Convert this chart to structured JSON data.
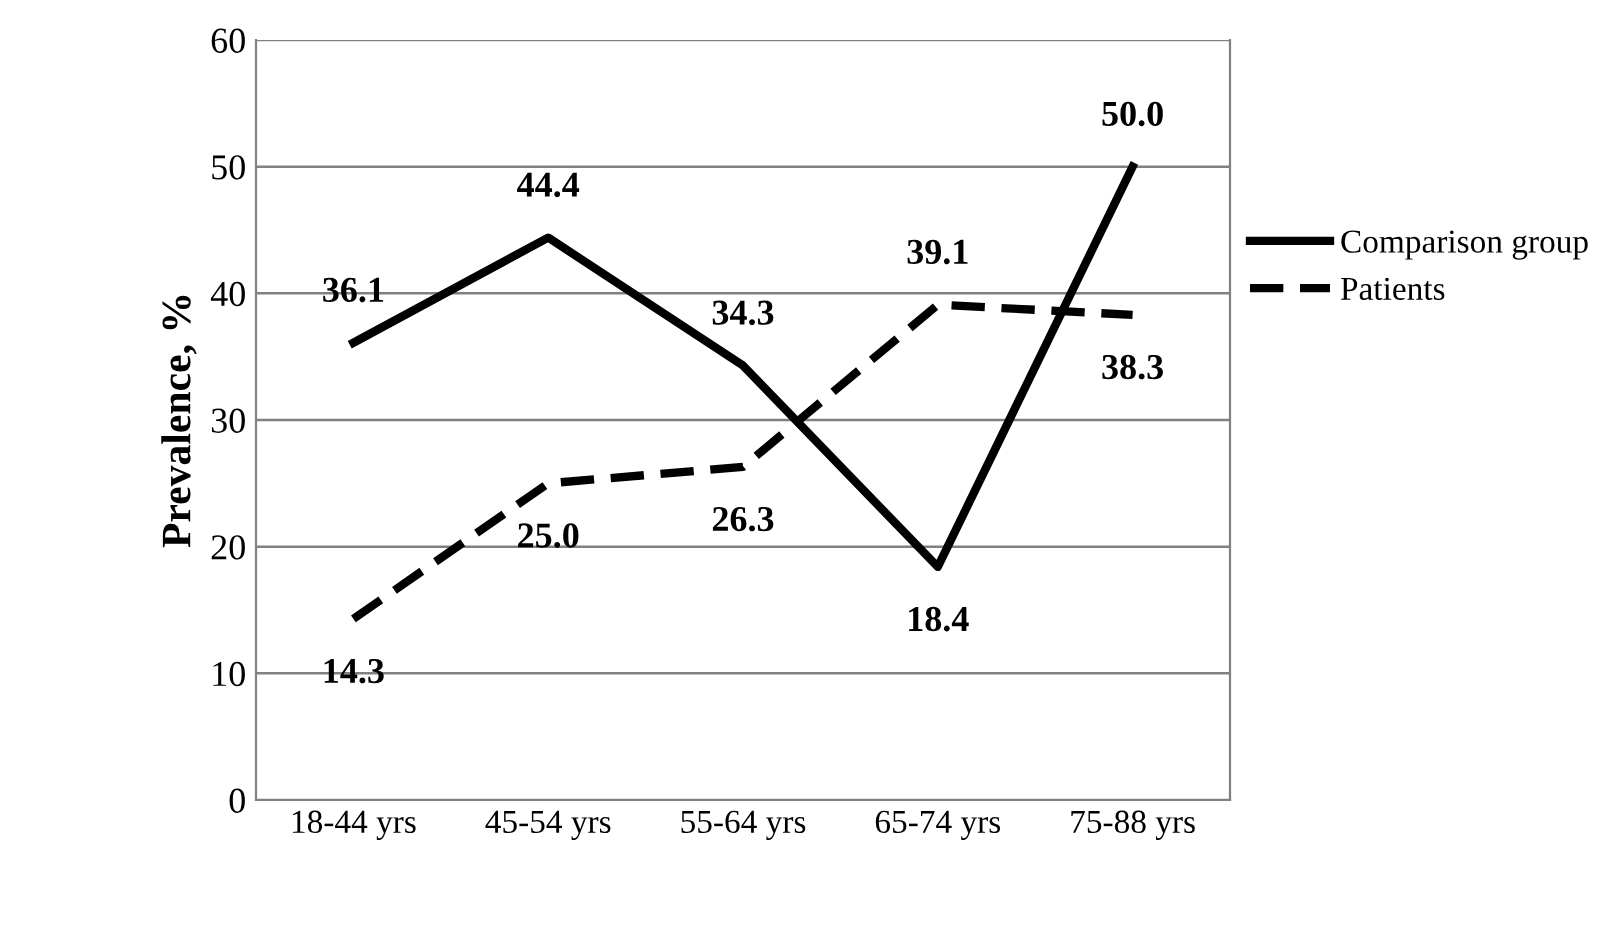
{
  "chart_data": {
    "type": "line",
    "ylabel": "Prevalence, %",
    "categories": [
      "18-44 yrs",
      "45-54 yrs",
      "55-64 yrs",
      "65-74 yrs",
      "75-88 yrs"
    ],
    "series": [
      {
        "name": "Comparison group",
        "color": "#000000",
        "line_style": "solid",
        "values": [
          36.1,
          44.4,
          34.3,
          18.4,
          50.0
        ],
        "value_labels": [
          "36.1",
          "44.4",
          "34.3",
          "18.4",
          "50.0"
        ]
      },
      {
        "name": "Patients",
        "color": "#000000",
        "line_style": "dashed",
        "values": [
          14.3,
          25.0,
          26.3,
          39.1,
          38.3
        ],
        "value_labels": [
          "14.3",
          "25.0",
          "26.3",
          "39.1",
          "38.3"
        ]
      }
    ],
    "ylim": [
      0,
      60
    ],
    "yticks": [
      0,
      10,
      20,
      30,
      40,
      50,
      60
    ],
    "grid": "y",
    "legend": "right",
    "marker": "none"
  }
}
